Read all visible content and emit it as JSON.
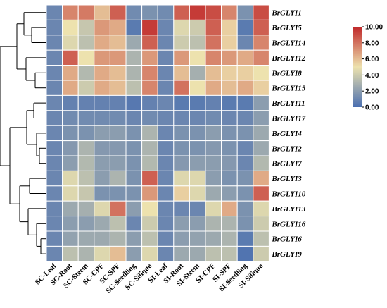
{
  "chart_data": {
    "type": "heatmap",
    "rows": [
      "BrGLYI1",
      "BrGLYI5",
      "BrGLYI14",
      "BrGLYI12",
      "BrGLYI8",
      "BrGLYI15",
      "BrGLYI11",
      "BrGLYI17",
      "BrGLYI4",
      "BrGLYI2",
      "BrGLYI7",
      "BrGLYI3",
      "BrGLYI10",
      "BrGLYI13",
      "BrGLYI16",
      "BrGLYI6",
      "BrGLYI9"
    ],
    "columns": [
      "SC-Leaf",
      "SC-Root",
      "SC-Steem",
      "SC-CPF",
      "SC-SPF",
      "SC-Seedling",
      "SC-Silique",
      "SI-Leaf",
      "SI-Root",
      "SI-Steem",
      "SI-CPF",
      "SI-SPF",
      "SI-Seedling",
      "SI-Silique"
    ],
    "values": [
      [
        1.0,
        7.5,
        7.8,
        6.0,
        8.5,
        1.2,
        1.5,
        1.2,
        8.5,
        9.5,
        9.0,
        7.5,
        1.5,
        9.0
      ],
      [
        1.0,
        5.0,
        3.8,
        7.0,
        6.5,
        0.5,
        9.5,
        1.0,
        4.5,
        4.0,
        8.5,
        5.5,
        0.5,
        8.5
      ],
      [
        1.0,
        4.5,
        3.5,
        6.5,
        6.0,
        2.5,
        8.5,
        1.0,
        4.0,
        3.5,
        8.0,
        5.5,
        1.0,
        7.5
      ],
      [
        1.0,
        8.5,
        5.0,
        7.0,
        7.0,
        3.0,
        7.0,
        1.0,
        7.0,
        5.0,
        7.5,
        7.0,
        6.5,
        7.5
      ],
      [
        1.0,
        6.5,
        3.2,
        6.5,
        6.0,
        3.0,
        7.5,
        1.0,
        6.0,
        2.8,
        6.0,
        5.5,
        5.5,
        5.0
      ],
      [
        1.0,
        6.5,
        4.0,
        6.5,
        6.0,
        3.5,
        7.5,
        1.0,
        8.0,
        5.0,
        6.5,
        6.0,
        6.5,
        5.5
      ],
      [
        1.0,
        0.8,
        0.8,
        0.8,
        0.8,
        0.4,
        0.8,
        1.0,
        0.5,
        0.5,
        0.8,
        0.5,
        0.5,
        2.0
      ],
      [
        1.0,
        1.2,
        1.2,
        1.2,
        1.2,
        1.0,
        1.2,
        1.0,
        1.0,
        1.0,
        1.2,
        1.0,
        1.0,
        2.0
      ],
      [
        1.0,
        1.5,
        1.5,
        2.0,
        2.0,
        1.5,
        3.0,
        1.0,
        1.5,
        1.5,
        2.0,
        1.5,
        1.5,
        2.5
      ],
      [
        1.0,
        1.8,
        3.0,
        1.8,
        1.8,
        1.5,
        3.0,
        1.0,
        1.5,
        1.5,
        1.8,
        1.5,
        1.0,
        2.5
      ],
      [
        1.0,
        2.0,
        3.2,
        2.0,
        2.0,
        1.5,
        3.2,
        1.0,
        1.8,
        2.0,
        2.0,
        1.8,
        1.0,
        3.2
      ],
      [
        1.0,
        4.5,
        3.5,
        2.0,
        3.0,
        1.5,
        8.5,
        1.0,
        4.5,
        4.5,
        2.0,
        1.5,
        1.5,
        6.5
      ],
      [
        1.0,
        4.5,
        3.8,
        1.5,
        1.5,
        1.5,
        7.0,
        1.0,
        5.5,
        4.5,
        2.5,
        2.0,
        1.5,
        8.5
      ],
      [
        1.0,
        2.5,
        2.8,
        4.5,
        8.0,
        2.0,
        5.0,
        1.0,
        1.0,
        1.0,
        4.5,
        6.5,
        1.5,
        4.5
      ],
      [
        1.0,
        2.0,
        2.0,
        2.5,
        3.5,
        1.0,
        4.0,
        1.0,
        2.0,
        2.0,
        3.0,
        3.0,
        1.5,
        4.0
      ],
      [
        1.0,
        2.2,
        2.5,
        2.5,
        3.0,
        2.0,
        3.5,
        1.0,
        2.0,
        2.2,
        2.5,
        3.0,
        0.5,
        3.5
      ],
      [
        1.0,
        3.5,
        3.0,
        4.5,
        6.0,
        2.0,
        4.5,
        1.0,
        2.5,
        2.5,
        3.5,
        3.5,
        0.2,
        4.0
      ]
    ],
    "scale": {
      "min": 0,
      "max": 10,
      "ticks": [
        "0.00",
        "2.00",
        "4.00",
        "6.00",
        "8.00",
        "10.00"
      ]
    },
    "colormap": [
      "#4A6FB0",
      "#EDE2AE",
      "#C0282A"
    ],
    "grid": true,
    "legend_position": "top-right",
    "dendrogram": "left (row clustering)"
  }
}
